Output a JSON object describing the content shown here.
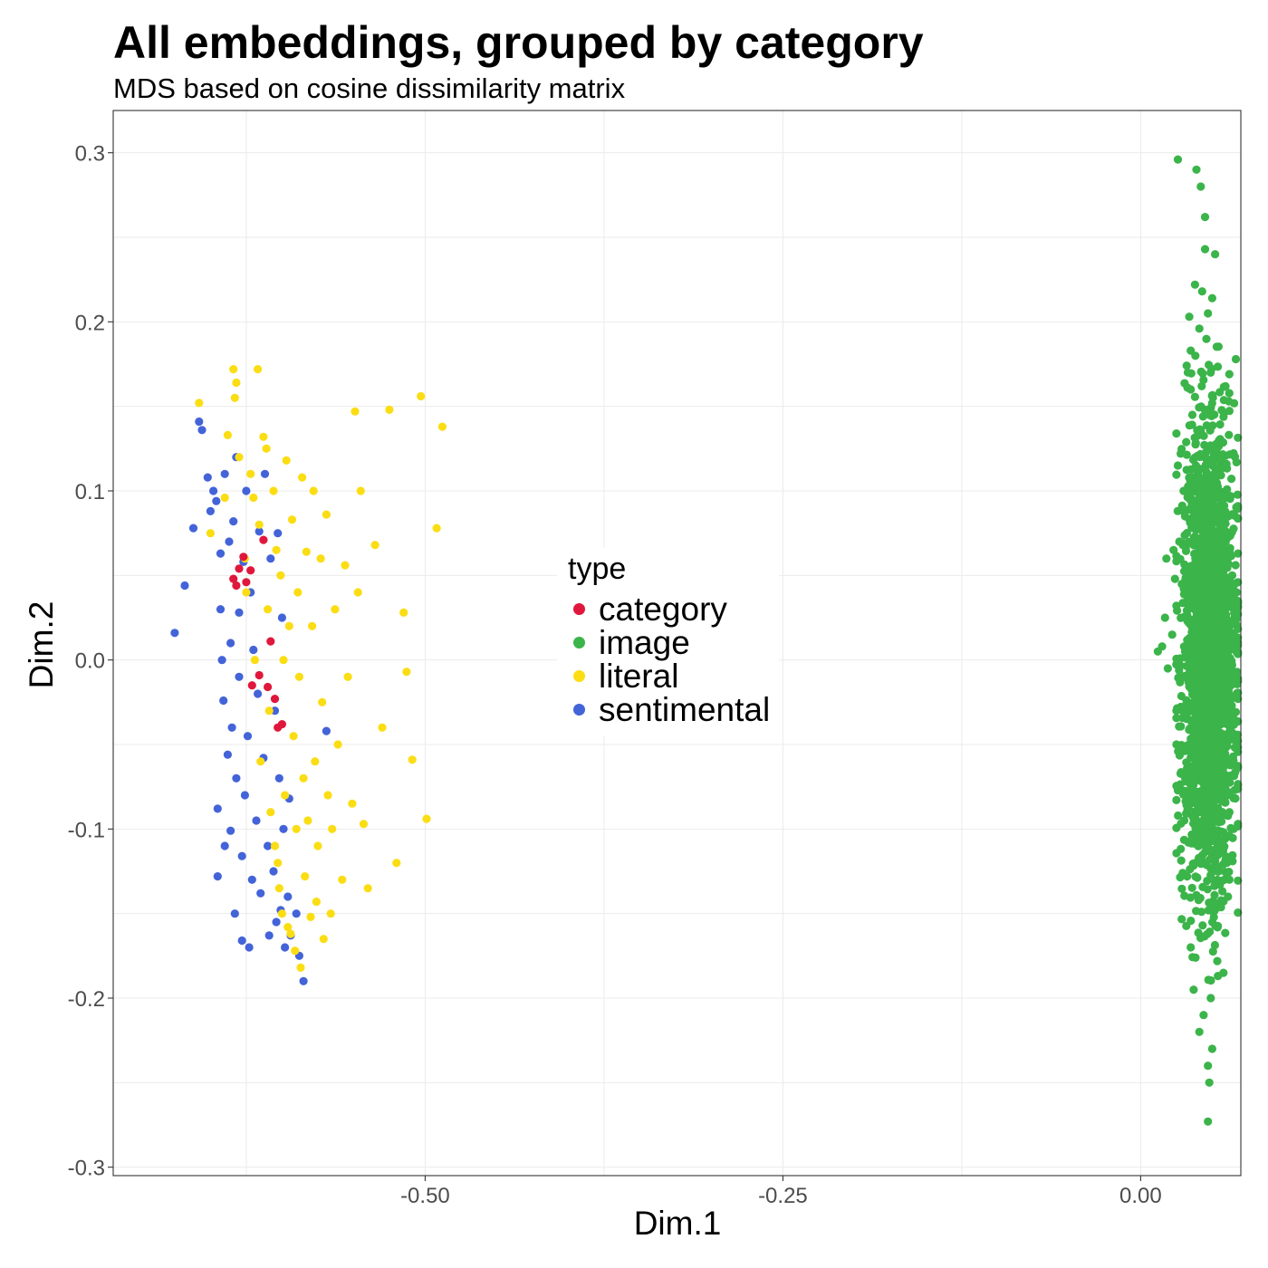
{
  "chart_data": {
    "type": "scatter",
    "title": "All embeddings, grouped by category",
    "subtitle": "MDS based on cosine dissimilarity matrix",
    "xlabel": "Dim.1",
    "ylabel": "Dim.2",
    "xlim": [
      -0.718,
      0.07
    ],
    "ylim": [
      -0.305,
      0.325
    ],
    "xticks": [
      -0.5,
      -0.25,
      0.0
    ],
    "xtick_labels": [
      "-0.50",
      "-0.25",
      "0.00"
    ],
    "yticks": [
      -0.3,
      -0.2,
      -0.1,
      0.0,
      0.1,
      0.2,
      0.3
    ],
    "ytick_labels": [
      "-0.3",
      "-0.2",
      "-0.1",
      "0.0",
      "0.1",
      "0.2",
      "0.3"
    ],
    "grid": true,
    "legend": {
      "title": "type",
      "placement": "center",
      "entries": [
        {
          "name": "category",
          "color": "#E0173C"
        },
        {
          "name": "image",
          "color": "#3BB44A"
        },
        {
          "name": "literal",
          "color": "#FBDD14"
        },
        {
          "name": "sentimental",
          "color": "#4363D8"
        }
      ]
    },
    "series": [
      {
        "name": "sentimental",
        "color": "#4363D8",
        "points": [
          [
            -0.675,
            0.016
          ],
          [
            -0.668,
            0.044
          ],
          [
            -0.662,
            0.078
          ],
          [
            -0.658,
            0.141
          ],
          [
            -0.656,
            0.136
          ],
          [
            -0.652,
            0.108
          ],
          [
            -0.65,
            0.088
          ],
          [
            -0.648,
            0.1
          ],
          [
            -0.646,
            0.094
          ],
          [
            -0.645,
            -0.128
          ],
          [
            -0.645,
            -0.088
          ],
          [
            -0.643,
            0.063
          ],
          [
            -0.643,
            0.03
          ],
          [
            -0.642,
            0.0
          ],
          [
            -0.641,
            -0.024
          ],
          [
            -0.64,
            0.11
          ],
          [
            -0.64,
            -0.11
          ],
          [
            -0.638,
            -0.056
          ],
          [
            -0.637,
            0.07
          ],
          [
            -0.636,
            -0.101
          ],
          [
            -0.636,
            0.01
          ],
          [
            -0.635,
            -0.04
          ],
          [
            -0.634,
            0.082
          ],
          [
            -0.633,
            -0.15
          ],
          [
            -0.632,
            0.12
          ],
          [
            -0.632,
            -0.07
          ],
          [
            -0.63,
            0.028
          ],
          [
            -0.63,
            -0.01
          ],
          [
            -0.628,
            -0.166
          ],
          [
            -0.628,
            -0.116
          ],
          [
            -0.627,
            0.058
          ],
          [
            -0.626,
            -0.08
          ],
          [
            -0.625,
            0.1
          ],
          [
            -0.624,
            -0.045
          ],
          [
            -0.623,
            -0.17
          ],
          [
            -0.622,
            0.04
          ],
          [
            -0.621,
            -0.13
          ],
          [
            -0.62,
            0.006
          ],
          [
            -0.618,
            -0.095
          ],
          [
            -0.617,
            -0.02
          ],
          [
            -0.616,
            0.076
          ],
          [
            -0.615,
            -0.138
          ],
          [
            -0.613,
            -0.058
          ],
          [
            -0.612,
            0.11
          ],
          [
            -0.61,
            -0.11
          ],
          [
            -0.609,
            -0.163
          ],
          [
            -0.608,
            0.06
          ],
          [
            -0.606,
            -0.125
          ],
          [
            -0.605,
            -0.03
          ],
          [
            -0.604,
            -0.155
          ],
          [
            -0.603,
            0.075
          ],
          [
            -0.602,
            -0.07
          ],
          [
            -0.601,
            -0.148
          ],
          [
            -0.6,
            0.025
          ],
          [
            -0.599,
            -0.1
          ],
          [
            -0.598,
            -0.17
          ],
          [
            -0.596,
            -0.14
          ],
          [
            -0.595,
            -0.082
          ],
          [
            -0.594,
            -0.163
          ],
          [
            -0.59,
            -0.15
          ],
          [
            -0.588,
            -0.175
          ],
          [
            -0.585,
            -0.19
          ],
          [
            -0.569,
            -0.042
          ]
        ]
      },
      {
        "name": "literal",
        "color": "#FBDD14",
        "points": [
          [
            -0.658,
            0.152
          ],
          [
            -0.65,
            0.075
          ],
          [
            -0.64,
            0.096
          ],
          [
            -0.638,
            0.133
          ],
          [
            -0.634,
            0.172
          ],
          [
            -0.633,
            0.155
          ],
          [
            -0.632,
            0.164
          ],
          [
            -0.63,
            0.12
          ],
          [
            -0.626,
            0.06
          ],
          [
            -0.625,
            0.04
          ],
          [
            -0.622,
            0.11
          ],
          [
            -0.62,
            0.096
          ],
          [
            -0.619,
            0.0
          ],
          [
            -0.617,
            0.172
          ],
          [
            -0.616,
            0.08
          ],
          [
            -0.615,
            -0.06
          ],
          [
            -0.613,
            0.132
          ],
          [
            -0.611,
            0.125
          ],
          [
            -0.61,
            0.03
          ],
          [
            -0.609,
            -0.03
          ],
          [
            -0.608,
            -0.09
          ],
          [
            -0.606,
            0.1
          ],
          [
            -0.605,
            -0.11
          ],
          [
            -0.604,
            0.065
          ],
          [
            -0.603,
            -0.12
          ],
          [
            -0.602,
            -0.135
          ],
          [
            -0.601,
            0.05
          ],
          [
            -0.6,
            -0.15
          ],
          [
            -0.599,
            0.0
          ],
          [
            -0.598,
            -0.08
          ],
          [
            -0.597,
            0.118
          ],
          [
            -0.596,
            -0.158
          ],
          [
            -0.595,
            0.02
          ],
          [
            -0.594,
            -0.162
          ],
          [
            -0.593,
            0.083
          ],
          [
            -0.592,
            -0.045
          ],
          [
            -0.591,
            -0.172
          ],
          [
            -0.59,
            -0.1
          ],
          [
            -0.589,
            0.04
          ],
          [
            -0.588,
            -0.01
          ],
          [
            -0.587,
            -0.182
          ],
          [
            -0.586,
            0.108
          ],
          [
            -0.585,
            -0.07
          ],
          [
            -0.584,
            -0.128
          ],
          [
            -0.583,
            0.064
          ],
          [
            -0.582,
            -0.095
          ],
          [
            -0.58,
            -0.152
          ],
          [
            -0.579,
            0.02
          ],
          [
            -0.578,
            0.1
          ],
          [
            -0.577,
            -0.06
          ],
          [
            -0.576,
            -0.143
          ],
          [
            -0.575,
            -0.11
          ],
          [
            -0.573,
            0.06
          ],
          [
            -0.572,
            -0.025
          ],
          [
            -0.571,
            -0.165
          ],
          [
            -0.569,
            0.086
          ],
          [
            -0.568,
            -0.08
          ],
          [
            -0.566,
            -0.15
          ],
          [
            -0.565,
            -0.1
          ],
          [
            -0.563,
            0.03
          ],
          [
            -0.561,
            -0.05
          ],
          [
            -0.558,
            -0.13
          ],
          [
            -0.556,
            0.056
          ],
          [
            -0.554,
            -0.01
          ],
          [
            -0.551,
            -0.085
          ],
          [
            -0.549,
            0.147
          ],
          [
            -0.547,
            0.04
          ],
          [
            -0.545,
            0.1
          ],
          [
            -0.543,
            -0.097
          ],
          [
            -0.54,
            -0.135
          ],
          [
            -0.535,
            0.068
          ],
          [
            -0.53,
            -0.04
          ],
          [
            -0.525,
            0.148
          ],
          [
            -0.52,
            -0.12
          ],
          [
            -0.515,
            0.028
          ],
          [
            -0.513,
            -0.007
          ],
          [
            -0.509,
            -0.059
          ],
          [
            -0.503,
            0.156
          ],
          [
            -0.499,
            -0.094
          ],
          [
            -0.492,
            0.078
          ],
          [
            -0.488,
            0.138
          ]
        ]
      },
      {
        "name": "category",
        "color": "#E0173C",
        "points": [
          [
            -0.634,
            0.048
          ],
          [
            -0.632,
            0.044
          ],
          [
            -0.63,
            0.054
          ],
          [
            -0.627,
            0.061
          ],
          [
            -0.625,
            0.046
          ],
          [
            -0.622,
            0.053
          ],
          [
            -0.621,
            -0.015
          ],
          [
            -0.616,
            -0.009
          ],
          [
            -0.613,
            0.071
          ],
          [
            -0.61,
            -0.016
          ],
          [
            -0.608,
            0.011
          ],
          [
            -0.605,
            -0.023
          ],
          [
            -0.603,
            -0.04
          ],
          [
            -0.6,
            -0.038
          ]
        ]
      }
    ],
    "image_cloud": {
      "name": "image",
      "color": "#3BB44A",
      "center_x": 0.048,
      "spread_x": 0.009,
      "spread_y": 0.065,
      "count": 2500,
      "outliers": [
        [
          0.026,
          0.296
        ],
        [
          0.039,
          0.29
        ],
        [
          0.042,
          0.28
        ],
        [
          0.045,
          0.262
        ],
        [
          0.045,
          0.243
        ],
        [
          0.052,
          0.24
        ],
        [
          0.038,
          0.222
        ],
        [
          0.043,
          0.218
        ],
        [
          0.05,
          0.214
        ],
        [
          0.047,
          0.205
        ],
        [
          0.034,
          0.203
        ],
        [
          0.041,
          0.196
        ],
        [
          0.035,
          0.183
        ],
        [
          0.033,
          0.17
        ],
        [
          0.035,
          0.16
        ],
        [
          0.028,
          0.122
        ],
        [
          0.026,
          0.115
        ],
        [
          0.03,
          0.1
        ],
        [
          0.031,
          0.085
        ],
        [
          0.027,
          0.07
        ],
        [
          0.018,
          0.06
        ],
        [
          0.023,
          0.065
        ],
        [
          0.024,
          0.048
        ],
        [
          0.033,
          0.038
        ],
        [
          0.025,
          0.032
        ],
        [
          0.017,
          0.025
        ],
        [
          0.022,
          0.015
        ],
        [
          0.015,
          0.008
        ],
        [
          0.012,
          0.005
        ],
        [
          0.019,
          -0.005
        ],
        [
          0.031,
          0.005
        ],
        [
          0.025,
          -0.03
        ],
        [
          0.025,
          -0.05
        ],
        [
          0.028,
          -0.053
        ],
        [
          0.067,
          0.04
        ],
        [
          0.066,
          0.03
        ],
        [
          0.065,
          0.015
        ],
        [
          0.064,
          0.05
        ],
        [
          0.063,
          -0.06
        ],
        [
          0.062,
          -0.09
        ],
        [
          0.061,
          -0.14
        ],
        [
          0.062,
          -0.13
        ],
        [
          0.035,
          -0.17
        ],
        [
          0.037,
          -0.195
        ],
        [
          0.05,
          -0.23
        ],
        [
          0.047,
          -0.24
        ],
        [
          0.048,
          -0.25
        ],
        [
          0.047,
          -0.273
        ],
        [
          0.041,
          -0.22
        ],
        [
          0.044,
          -0.21
        ],
        [
          0.049,
          -0.2
        ]
      ]
    }
  }
}
